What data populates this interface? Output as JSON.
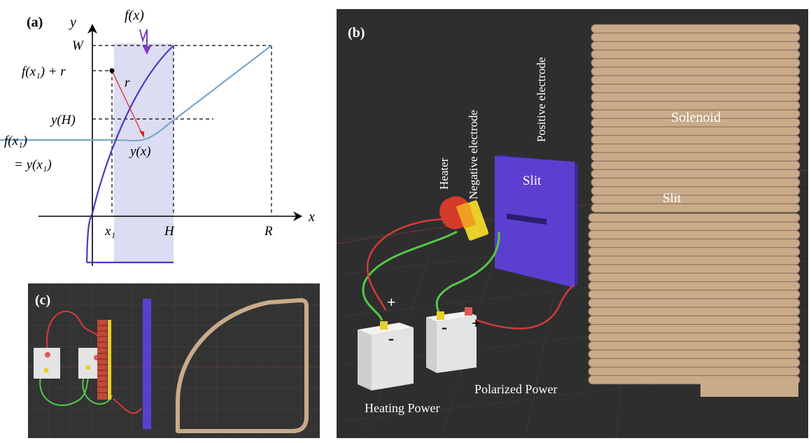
{
  "panel_a": {
    "label": "(a)",
    "y_axis": "y",
    "x_axis": "x",
    "curve_f": "f(x)",
    "W": "W",
    "f_x1_plus_r": "f(x₁) + r",
    "r": "r",
    "yH": "y(H)",
    "f_x1": "f(x₁)",
    "eq_y_x1": "= y(x₁)",
    "y_x": "y(x)",
    "x1": "x₁",
    "H": "H",
    "R": "R"
  },
  "panel_b": {
    "label": "(b)",
    "heater": "Heater",
    "negative_electrode": "Negative electrode",
    "positive_electrode": "Positive electrode",
    "slit_plate": "Slit",
    "solenoid": "Solenoid",
    "solenoid_slit": "Slit",
    "plus_left": "+",
    "minus_left": "-",
    "minus_right": "-",
    "plus_right": "+",
    "heating_power": "Heating Power",
    "polarized_power": "Polarized Power"
  },
  "panel_c": {
    "label": "(c)"
  },
  "colors": {
    "curve_blue": "#4b3bbf",
    "y_curve": "#7aa6c8",
    "shade": "#dcdcf2",
    "red_arrow": "#e02020",
    "purple_bracket": "#7a3cc8",
    "scene_bg": "#2e2e2e",
    "coil": "#c9ab8a",
    "slit_plate": "#5b3fd1",
    "battery": "#e4e4e4",
    "terminal_yellow": "#e8cf2a",
    "wire_green": "#55c84a",
    "wire_red": "#d43a3a"
  }
}
